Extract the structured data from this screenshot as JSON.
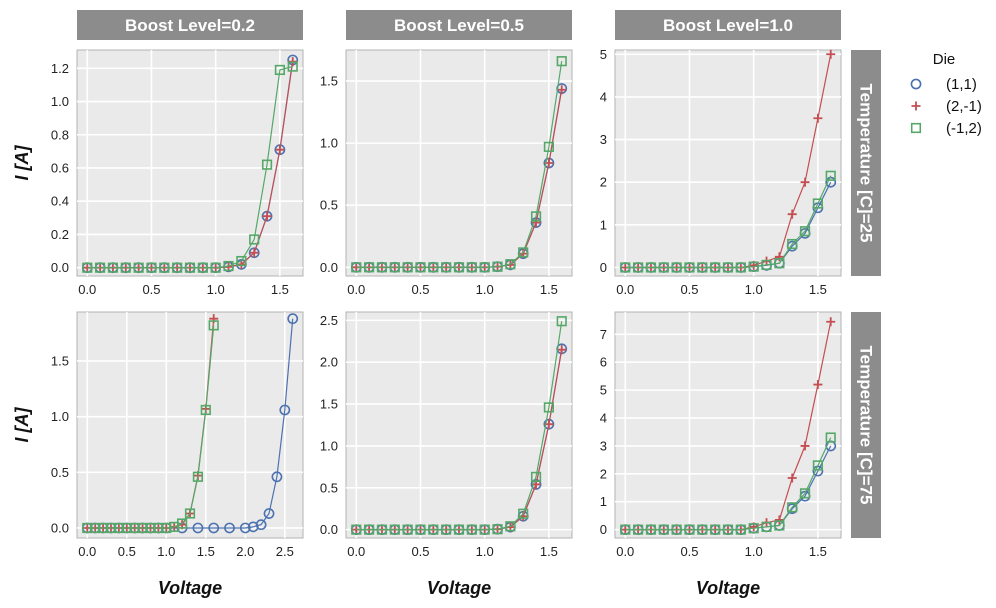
{
  "chart_data": {
    "type": "line",
    "xlabel": "Voltage",
    "ylabel": "I [A]",
    "col_facet": {
      "label": "Boost Level",
      "values": [
        "Boost Level=0.2",
        "Boost Level=0.5",
        "Boost Level=1.0"
      ]
    },
    "row_facet": {
      "label": "Temperature [C]",
      "values": [
        "Temperature [C]=25",
        "Temperature [C]=75"
      ]
    },
    "legend": {
      "title": "Die",
      "entries": [
        "(1,1)",
        "(2,-1)",
        "(-1,2)"
      ],
      "placement": "right"
    },
    "grid": true,
    "series_style": [
      {
        "name": "(1,1)",
        "marker": "circle",
        "color": "#4c72b0"
      },
      {
        "name": "(2,-1)",
        "marker": "plus",
        "color": "#c44e52"
      },
      {
        "name": "(-1,2)",
        "marker": "square",
        "color": "#55a868"
      }
    ],
    "panels": [
      {
        "row": 0,
        "col": 0,
        "xlim": [
          -0.08,
          1.68
        ],
        "ylim": [
          -0.05,
          1.31
        ],
        "xticks": [
          "0.0",
          "0.5",
          "1.0",
          "1.5"
        ],
        "xtick_values": [
          0,
          0.5,
          1.0,
          1.5
        ],
        "yticks": [
          "0.0",
          "0.2",
          "0.4",
          "0.6",
          "0.8",
          "1.0",
          "1.2"
        ],
        "ytick_values": [
          0,
          0.2,
          0.4,
          0.6,
          0.8,
          1.0,
          1.2
        ],
        "series": [
          {
            "name": "(1,1)",
            "x": [
              0,
              0.1,
              0.2,
              0.3,
              0.4,
              0.5,
              0.6,
              0.7,
              0.8,
              0.9,
              1.0,
              1.1,
              1.2,
              1.3,
              1.4,
              1.5,
              1.6
            ],
            "y": [
              0,
              0,
              0,
              0,
              0,
              0,
              0,
              0,
              0,
              0,
              0,
              0.005,
              0.02,
              0.09,
              0.31,
              0.71,
              1.25
            ]
          },
          {
            "name": "(2,-1)",
            "x": [
              0,
              0.1,
              0.2,
              0.3,
              0.4,
              0.5,
              0.6,
              0.7,
              0.8,
              0.9,
              1.0,
              1.1,
              1.2,
              1.3,
              1.4,
              1.5,
              1.6
            ],
            "y": [
              0,
              0,
              0,
              0,
              0,
              0,
              0,
              0,
              0,
              0,
              0,
              0.005,
              0.02,
              0.09,
              0.31,
              0.71,
              1.24
            ]
          },
          {
            "name": "(-1,2)",
            "x": [
              0,
              0.1,
              0.2,
              0.3,
              0.4,
              0.5,
              0.6,
              0.7,
              0.8,
              0.9,
              1.0,
              1.1,
              1.2,
              1.3,
              1.4,
              1.5,
              1.6
            ],
            "y": [
              0,
              0,
              0,
              0,
              0,
              0,
              0,
              0,
              0,
              0,
              0,
              0.01,
              0.04,
              0.17,
              0.62,
              1.19,
              1.21
            ]
          }
        ]
      },
      {
        "row": 0,
        "col": 1,
        "xlim": [
          -0.08,
          1.68
        ],
        "ylim": [
          -0.07,
          1.75
        ],
        "xticks": [
          "0.0",
          "0.5",
          "1.0",
          "1.5"
        ],
        "xtick_values": [
          0,
          0.5,
          1.0,
          1.5
        ],
        "yticks": [
          "0.0",
          "0.5",
          "1.0",
          "1.5"
        ],
        "ytick_values": [
          0,
          0.5,
          1.0,
          1.5
        ],
        "series": [
          {
            "name": "(1,1)",
            "x": [
              0,
              0.1,
              0.2,
              0.3,
              0.4,
              0.5,
              0.6,
              0.7,
              0.8,
              0.9,
              1.0,
              1.1,
              1.2,
              1.3,
              1.4,
              1.5,
              1.6
            ],
            "y": [
              0,
              0,
              0,
              0,
              0,
              0,
              0,
              0,
              0,
              0,
              0,
              0.005,
              0.02,
              0.11,
              0.36,
              0.84,
              1.44
            ]
          },
          {
            "name": "(2,-1)",
            "x": [
              0,
              0.1,
              0.2,
              0.3,
              0.4,
              0.5,
              0.6,
              0.7,
              0.8,
              0.9,
              1.0,
              1.1,
              1.2,
              1.3,
              1.4,
              1.5,
              1.6
            ],
            "y": [
              0,
              0,
              0,
              0,
              0,
              0,
              0,
              0,
              0,
              0,
              0,
              0.005,
              0.02,
              0.11,
              0.36,
              0.84,
              1.43
            ]
          },
          {
            "name": "(-1,2)",
            "x": [
              0,
              0.1,
              0.2,
              0.3,
              0.4,
              0.5,
              0.6,
              0.7,
              0.8,
              0.9,
              1.0,
              1.1,
              1.2,
              1.3,
              1.4,
              1.5,
              1.6
            ],
            "y": [
              0,
              0,
              0,
              0,
              0,
              0,
              0,
              0,
              0,
              0,
              0,
              0.005,
              0.025,
              0.12,
              0.41,
              0.97,
              1.66
            ]
          }
        ]
      },
      {
        "row": 0,
        "col": 2,
        "xlim": [
          -0.08,
          1.68
        ],
        "ylim": [
          -0.2,
          5.1
        ],
        "xticks": [
          "0.0",
          "0.5",
          "1.0",
          "1.5"
        ],
        "xtick_values": [
          0,
          0.5,
          1.0,
          1.5
        ],
        "yticks": [
          "0",
          "1",
          "2",
          "3",
          "4",
          "5"
        ],
        "ytick_values": [
          0,
          1,
          2,
          3,
          4,
          5
        ],
        "series": [
          {
            "name": "(1,1)",
            "x": [
              0,
              0.1,
              0.2,
              0.3,
              0.4,
              0.5,
              0.6,
              0.7,
              0.8,
              0.9,
              1.0,
              1.1,
              1.2,
              1.3,
              1.4,
              1.5,
              1.6
            ],
            "y": [
              0,
              0,
              0,
              0,
              0,
              0,
              0,
              0,
              0,
              0,
              0.02,
              0.05,
              0.1,
              0.5,
              0.8,
              1.4,
              2.0
            ]
          },
          {
            "name": "(2,-1)",
            "x": [
              0,
              0.1,
              0.2,
              0.3,
              0.4,
              0.5,
              0.6,
              0.7,
              0.8,
              0.9,
              1.0,
              1.1,
              1.2,
              1.3,
              1.4,
              1.5,
              1.6
            ],
            "y": [
              0,
              0,
              0,
              0,
              0,
              0,
              0,
              0,
              0,
              0,
              0.05,
              0.15,
              0.25,
              1.25,
              2.0,
              3.5,
              5.0
            ]
          },
          {
            "name": "(-1,2)",
            "x": [
              0,
              0.1,
              0.2,
              0.3,
              0.4,
              0.5,
              0.6,
              0.7,
              0.8,
              0.9,
              1.0,
              1.1,
              1.2,
              1.3,
              1.4,
              1.5,
              1.6
            ],
            "y": [
              0,
              0,
              0,
              0,
              0,
              0,
              0,
              0,
              0,
              0,
              0.02,
              0.06,
              0.1,
              0.55,
              0.85,
              1.5,
              2.15
            ]
          }
        ]
      },
      {
        "row": 1,
        "col": 0,
        "xlim": [
          -0.13,
          2.73
        ],
        "ylim": [
          -0.09,
          1.94
        ],
        "xticks": [
          "0.0",
          "0.5",
          "1.0",
          "1.5",
          "2.0",
          "2.5"
        ],
        "xtick_values": [
          0,
          0.5,
          1.0,
          1.5,
          2.0,
          2.5
        ],
        "yticks": [
          "0.0",
          "0.5",
          "1.0",
          "1.5"
        ],
        "ytick_values": [
          0,
          0.5,
          1.0,
          1.5
        ],
        "series": [
          {
            "name": "(1,1)",
            "x": [
              0,
              0.1,
              0.2,
              0.3,
              0.4,
              0.5,
              0.6,
              0.7,
              0.8,
              0.9,
              1.0,
              1.2,
              1.4,
              1.6,
              1.8,
              2.0,
              2.1,
              2.2,
              2.3,
              2.4,
              2.5,
              2.6
            ],
            "y": [
              0,
              0,
              0,
              0,
              0,
              0,
              0,
              0,
              0,
              0,
              0,
              0,
              0,
              0,
              0,
              0,
              0.01,
              0.03,
              0.13,
              0.46,
              1.06,
              1.88
            ]
          },
          {
            "name": "(2,-1)",
            "x": [
              0,
              0.1,
              0.2,
              0.3,
              0.4,
              0.5,
              0.6,
              0.7,
              0.8,
              0.9,
              1.0,
              1.1,
              1.2,
              1.3,
              1.4,
              1.5,
              1.6
            ],
            "y": [
              0,
              0,
              0,
              0,
              0,
              0,
              0,
              0,
              0,
              0,
              0,
              0.01,
              0.03,
              0.13,
              0.47,
              1.07,
              1.88
            ]
          },
          {
            "name": "(-1,2)",
            "x": [
              0,
              0.1,
              0.2,
              0.3,
              0.4,
              0.5,
              0.6,
              0.7,
              0.8,
              0.9,
              1.0,
              1.1,
              1.2,
              1.3,
              1.4,
              1.5,
              1.6
            ],
            "y": [
              0,
              0,
              0,
              0,
              0,
              0,
              0,
              0,
              0,
              0,
              0,
              0.01,
              0.04,
              0.13,
              0.46,
              1.06,
              1.82
            ]
          }
        ]
      },
      {
        "row": 1,
        "col": 1,
        "xlim": [
          -0.08,
          1.68
        ],
        "ylim": [
          -0.1,
          2.6
        ],
        "xticks": [
          "0.0",
          "0.5",
          "1.0",
          "1.5"
        ],
        "xtick_values": [
          0,
          0.5,
          1.0,
          1.5
        ],
        "yticks": [
          "0.0",
          "0.5",
          "1.0",
          "1.5",
          "2.0",
          "2.5"
        ],
        "ytick_values": [
          0,
          0.5,
          1.0,
          1.5,
          2.0,
          2.5
        ],
        "series": [
          {
            "name": "(1,1)",
            "x": [
              0,
              0.1,
              0.2,
              0.3,
              0.4,
              0.5,
              0.6,
              0.7,
              0.8,
              0.9,
              1.0,
              1.1,
              1.2,
              1.3,
              1.4,
              1.5,
              1.6
            ],
            "y": [
              0,
              0,
              0,
              0,
              0,
              0,
              0,
              0,
              0,
              0,
              0,
              0.005,
              0.03,
              0.16,
              0.54,
              1.26,
              2.16
            ]
          },
          {
            "name": "(2,-1)",
            "x": [
              0,
              0.1,
              0.2,
              0.3,
              0.4,
              0.5,
              0.6,
              0.7,
              0.8,
              0.9,
              1.0,
              1.1,
              1.2,
              1.3,
              1.4,
              1.5,
              1.6
            ],
            "y": [
              0,
              0,
              0,
              0,
              0,
              0,
              0,
              0,
              0,
              0,
              0,
              0.005,
              0.03,
              0.16,
              0.54,
              1.26,
              2.15
            ]
          },
          {
            "name": "(-1,2)",
            "x": [
              0,
              0.1,
              0.2,
              0.3,
              0.4,
              0.5,
              0.6,
              0.7,
              0.8,
              0.9,
              1.0,
              1.1,
              1.2,
              1.3,
              1.4,
              1.5,
              1.6
            ],
            "y": [
              0,
              0,
              0,
              0,
              0,
              0,
              0,
              0,
              0,
              0,
              0,
              0.005,
              0.04,
              0.19,
              0.63,
              1.46,
              2.49
            ]
          }
        ]
      },
      {
        "row": 1,
        "col": 2,
        "xlim": [
          -0.08,
          1.68
        ],
        "ylim": [
          -0.3,
          7.8
        ],
        "xticks": [
          "0.0",
          "0.5",
          "1.0",
          "1.5"
        ],
        "xtick_values": [
          0,
          0.5,
          1.0,
          1.5
        ],
        "yticks": [
          "0",
          "1",
          "2",
          "3",
          "4",
          "5",
          "6",
          "7"
        ],
        "ytick_values": [
          0,
          1,
          2,
          3,
          4,
          5,
          6,
          7
        ],
        "series": [
          {
            "name": "(1,1)",
            "x": [
              0,
              0.1,
              0.2,
              0.3,
              0.4,
              0.5,
              0.6,
              0.7,
              0.8,
              0.9,
              1.0,
              1.1,
              1.2,
              1.3,
              1.4,
              1.5,
              1.6
            ],
            "y": [
              0,
              0,
              0,
              0,
              0,
              0,
              0,
              0,
              0,
              0,
              0.05,
              0.1,
              0.15,
              0.75,
              1.2,
              2.1,
              3.0
            ]
          },
          {
            "name": "(2,-1)",
            "x": [
              0,
              0.1,
              0.2,
              0.3,
              0.4,
              0.5,
              0.6,
              0.7,
              0.8,
              0.9,
              1.0,
              1.1,
              1.2,
              1.3,
              1.4,
              1.5,
              1.6
            ],
            "y": [
              0,
              0,
              0,
              0,
              0,
              0,
              0,
              0,
              0,
              0,
              0.1,
              0.25,
              0.35,
              1.85,
              3.0,
              5.2,
              7.45
            ]
          },
          {
            "name": "(-1,2)",
            "x": [
              0,
              0.1,
              0.2,
              0.3,
              0.4,
              0.5,
              0.6,
              0.7,
              0.8,
              0.9,
              1.0,
              1.1,
              1.2,
              1.3,
              1.4,
              1.5,
              1.6
            ],
            "y": [
              0,
              0,
              0,
              0,
              0,
              0,
              0,
              0,
              0,
              0,
              0.05,
              0.1,
              0.15,
              0.8,
              1.3,
              2.3,
              3.3
            ]
          }
        ]
      }
    ]
  }
}
